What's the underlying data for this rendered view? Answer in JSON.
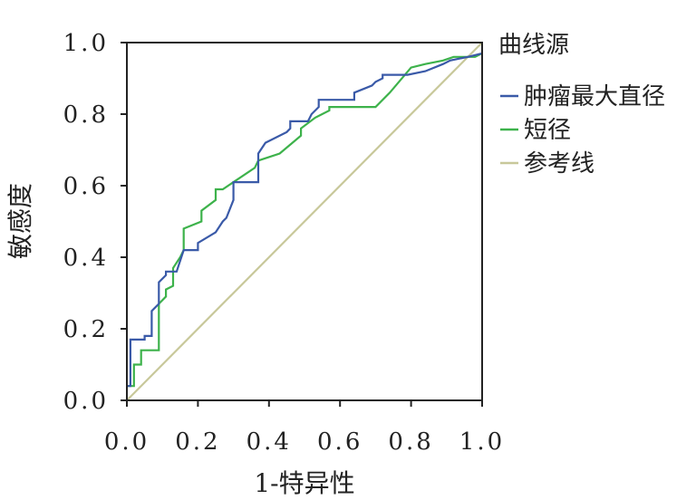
{
  "chart_data": {
    "type": "line",
    "title": "",
    "xlabel": "1-特异性",
    "ylabel": "敏感度",
    "xlim": [
      0,
      1
    ],
    "ylim": [
      0,
      1
    ],
    "x_ticks": [
      "0.0",
      "0.2",
      "0.4",
      "0.6",
      "0.8",
      "1.0"
    ],
    "y_ticks": [
      "0.0",
      "0.2",
      "0.4",
      "0.6",
      "0.8",
      "1.0"
    ],
    "grid": false,
    "legend_title": "曲线源",
    "legend_position": "right",
    "series": [
      {
        "name": "肿瘤最大直径",
        "color": "#3a5aa8",
        "x": [
          0.0,
          0.01,
          0.01,
          0.05,
          0.05,
          0.07,
          0.07,
          0.09,
          0.09,
          0.11,
          0.11,
          0.14,
          0.16,
          0.16,
          0.2,
          0.2,
          0.25,
          0.27,
          0.28,
          0.3,
          0.3,
          0.37,
          0.37,
          0.39,
          0.45,
          0.46,
          0.46,
          0.51,
          0.52,
          0.54,
          0.54,
          0.64,
          0.64,
          0.69,
          0.7,
          0.72,
          0.72,
          0.79,
          0.84,
          0.89,
          0.91,
          0.96,
          1.0
        ],
        "y": [
          0.04,
          0.04,
          0.17,
          0.17,
          0.18,
          0.18,
          0.25,
          0.27,
          0.33,
          0.35,
          0.36,
          0.36,
          0.42,
          0.42,
          0.42,
          0.44,
          0.47,
          0.5,
          0.51,
          0.56,
          0.61,
          0.61,
          0.69,
          0.72,
          0.75,
          0.76,
          0.78,
          0.78,
          0.8,
          0.82,
          0.84,
          0.84,
          0.86,
          0.88,
          0.89,
          0.9,
          0.91,
          0.91,
          0.92,
          0.94,
          0.95,
          0.96,
          0.97
        ]
      },
      {
        "name": "短径",
        "color": "#3db24b",
        "x": [
          0.0,
          0.02,
          0.02,
          0.04,
          0.04,
          0.09,
          0.09,
          0.11,
          0.11,
          0.13,
          0.13,
          0.15,
          0.16,
          0.16,
          0.21,
          0.21,
          0.25,
          0.25,
          0.27,
          0.3,
          0.36,
          0.37,
          0.43,
          0.49,
          0.49,
          0.53,
          0.57,
          0.57,
          0.7,
          0.74,
          0.8,
          0.84,
          0.89,
          0.92,
          0.96,
          0.98,
          1.0
        ],
        "y": [
          0.04,
          0.04,
          0.1,
          0.1,
          0.14,
          0.14,
          0.27,
          0.29,
          0.31,
          0.32,
          0.37,
          0.4,
          0.42,
          0.48,
          0.5,
          0.53,
          0.56,
          0.59,
          0.59,
          0.61,
          0.65,
          0.67,
          0.69,
          0.74,
          0.76,
          0.79,
          0.81,
          0.82,
          0.82,
          0.86,
          0.93,
          0.94,
          0.95,
          0.96,
          0.96,
          0.96,
          0.97
        ]
      },
      {
        "name": "参考线",
        "color": "#c8c89a",
        "x": [
          0,
          1
        ],
        "y": [
          0,
          1
        ]
      }
    ]
  }
}
